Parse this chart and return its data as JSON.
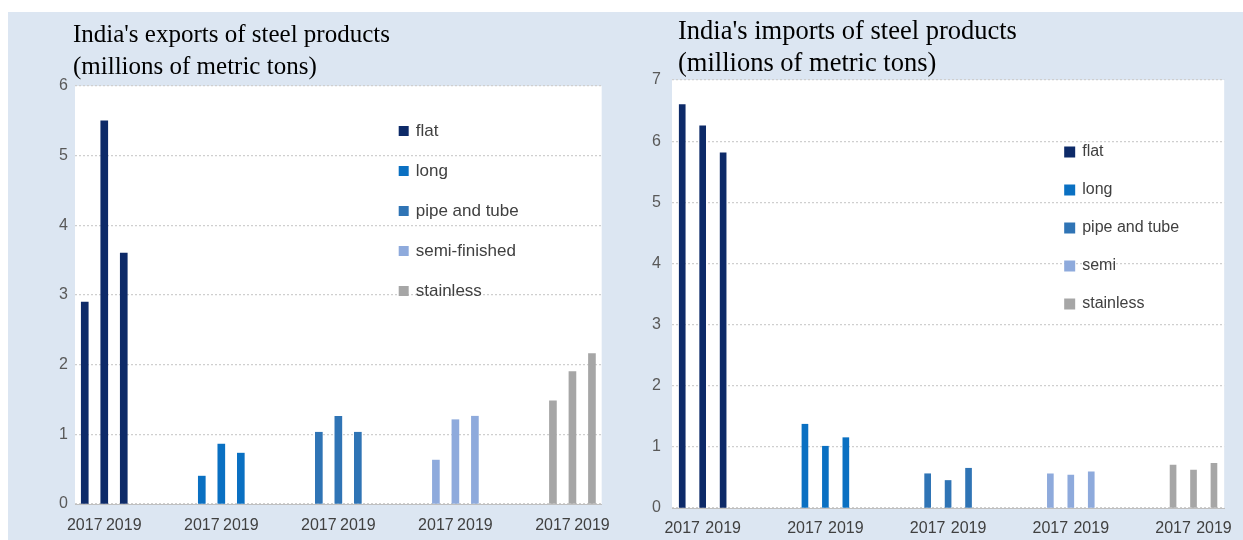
{
  "chart_data": [
    {
      "type": "bar",
      "title": "India's exports of steel products",
      "subtitle": "(millions of metric tons)",
      "categories": [
        "2017",
        null,
        "2019",
        null,
        null,
        null,
        "2017",
        null,
        "2019",
        null,
        null,
        null,
        "2017",
        null,
        "2019",
        null,
        null,
        null,
        "2017",
        null,
        "2019",
        null,
        null,
        null,
        "2017",
        null,
        "2019"
      ],
      "series": [
        {
          "name": "flat",
          "color": "#0d2a68",
          "values": [
            2.9,
            5.5,
            3.6,
            null,
            null,
            null,
            null,
            null,
            null,
            null,
            null,
            null,
            null,
            null,
            null,
            null,
            null,
            null,
            null,
            null,
            null,
            null,
            null,
            null,
            null,
            null,
            null
          ]
        },
        {
          "name": "long",
          "color": "#0a70c2",
          "values": [
            null,
            null,
            null,
            null,
            null,
            null,
            0.4,
            0.86,
            0.73,
            null,
            null,
            null,
            null,
            null,
            null,
            null,
            null,
            null,
            null,
            null,
            null,
            null,
            null,
            null,
            null,
            null,
            null
          ]
        },
        {
          "name": "pipe and tube",
          "color": "#2f74b5",
          "values": [
            null,
            null,
            null,
            null,
            null,
            null,
            null,
            null,
            null,
            null,
            null,
            null,
            1.03,
            1.26,
            1.03,
            null,
            null,
            null,
            null,
            null,
            null,
            null,
            null,
            null,
            null,
            null,
            null
          ]
        },
        {
          "name": "semi-finished",
          "color": "#8eaadc",
          "values": [
            null,
            null,
            null,
            null,
            null,
            null,
            null,
            null,
            null,
            null,
            null,
            null,
            null,
            null,
            null,
            null,
            null,
            null,
            0.63,
            1.21,
            1.26,
            null,
            null,
            null,
            null,
            null,
            null
          ]
        },
        {
          "name": "stainless",
          "color": "#a6a6a6",
          "values": [
            null,
            null,
            null,
            null,
            null,
            null,
            null,
            null,
            null,
            null,
            null,
            null,
            null,
            null,
            null,
            null,
            null,
            null,
            null,
            null,
            null,
            null,
            null,
            null,
            1.48,
            1.9,
            2.16
          ]
        }
      ],
      "ylim": [
        0,
        6
      ],
      "yticks": [
        0,
        1,
        2,
        3,
        4,
        5,
        6
      ],
      "grid": "y",
      "legend": "top right"
    },
    {
      "type": "bar",
      "title": "India's imports of steel products",
      "subtitle": "(millions of metric tons)",
      "categories": [
        "2017",
        null,
        "2019",
        null,
        null,
        null,
        "2017",
        null,
        "2019",
        null,
        null,
        null,
        "2017",
        null,
        "2019",
        null,
        null,
        null,
        "2017",
        null,
        "2019",
        null,
        null,
        null,
        "2017",
        null,
        "2019"
      ],
      "series": [
        {
          "name": "flat",
          "color": "#0d2a68",
          "values": [
            6.6,
            6.25,
            5.81,
            null,
            null,
            null,
            null,
            null,
            null,
            null,
            null,
            null,
            null,
            null,
            null,
            null,
            null,
            null,
            null,
            null,
            null,
            null,
            null,
            null,
            null,
            null,
            null
          ]
        },
        {
          "name": "long",
          "color": "#0a70c2",
          "values": [
            null,
            null,
            null,
            null,
            null,
            null,
            1.37,
            1.01,
            1.15,
            null,
            null,
            null,
            null,
            null,
            null,
            null,
            null,
            null,
            null,
            null,
            null,
            null,
            null,
            null,
            null,
            null,
            null
          ]
        },
        {
          "name": "pipe and tube",
          "color": "#2f74b5",
          "values": [
            null,
            null,
            null,
            null,
            null,
            null,
            null,
            null,
            null,
            null,
            null,
            null,
            0.56,
            0.45,
            0.65,
            null,
            null,
            null,
            null,
            null,
            null,
            null,
            null,
            null,
            null,
            null,
            null
          ]
        },
        {
          "name": "semi",
          "color": "#8eaadc",
          "values": [
            null,
            null,
            null,
            null,
            null,
            null,
            null,
            null,
            null,
            null,
            null,
            null,
            null,
            null,
            null,
            null,
            null,
            null,
            0.56,
            0.54,
            0.59,
            null,
            null,
            null,
            null,
            null,
            null
          ]
        },
        {
          "name": "stainless",
          "color": "#a6a6a6",
          "values": [
            null,
            null,
            null,
            null,
            null,
            null,
            null,
            null,
            null,
            null,
            null,
            null,
            null,
            null,
            null,
            null,
            null,
            null,
            null,
            null,
            null,
            null,
            null,
            null,
            0.7,
            0.62,
            0.73
          ]
        }
      ],
      "ylim": [
        0,
        7
      ],
      "yticks": [
        0,
        1,
        2,
        3,
        4,
        5,
        6,
        7
      ],
      "grid": "y",
      "legend": "top right"
    }
  ]
}
